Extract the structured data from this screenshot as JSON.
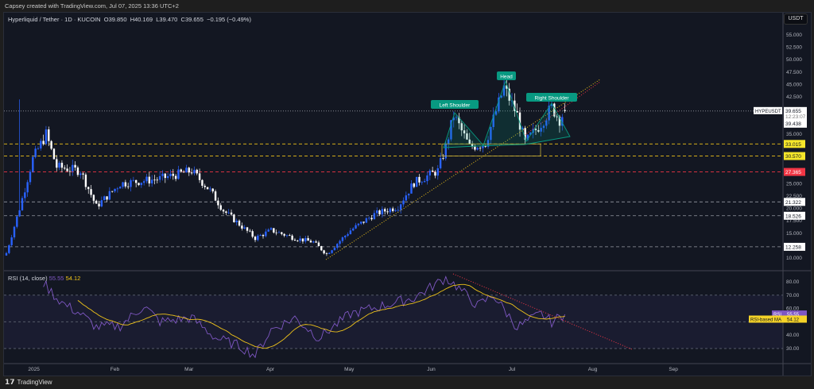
{
  "credit": "Capsey created with TradingView.com, Jul 07, 2025 13:36 UTC+2",
  "legend": {
    "symbol": "Hyperliquid / Tether · 1D · KUCOIN",
    "open": "O39.850",
    "high": "H40.169",
    "low": "L39.470",
    "close": "C39.655",
    "change": "−0.195 (−0.49%)"
  },
  "currency_button": "USDT",
  "rsi_legend": {
    "name": "RSI (14, close)",
    "rsi": "55.55",
    "ma": "54.12"
  },
  "footer": "TradingView",
  "colors": {
    "up": "#2962ff",
    "down": "#ffffff",
    "rsi": "#7e57c2",
    "ma": "#f0c419",
    "pattern": "#089981",
    "alert": "#f23645"
  },
  "chart_data": [
    {
      "type": "candlestick",
      "title": "Hyperliquid / Tether 1D",
      "price_ticks": [
        "55.000",
        "52.500",
        "50.000",
        "47.500",
        "45.000",
        "42.500",
        "35.000",
        "25.000",
        "22.500",
        "20.000",
        "17.500",
        "15.000",
        "10.000"
      ],
      "price_tick_values": [
        55,
        52.5,
        50,
        47.5,
        45,
        42.5,
        35,
        25,
        22.5,
        20,
        17.5,
        15,
        10
      ],
      "ylim": [
        8,
        58
      ],
      "close_keypoints": [
        [
          0,
          11
        ],
        [
          5,
          20
        ],
        [
          10,
          30
        ],
        [
          15,
          35
        ],
        [
          19,
          28.4
        ],
        [
          28,
          27.6
        ],
        [
          34,
          20.4
        ],
        [
          43,
          25
        ],
        [
          58,
          26
        ],
        [
          70,
          27.6
        ],
        [
          77,
          23.6
        ],
        [
          82,
          19.6
        ],
        [
          94,
          14
        ],
        [
          100,
          15.6
        ],
        [
          109,
          14
        ],
        [
          116,
          13.2
        ],
        [
          121,
          10.8
        ],
        [
          130,
          15.6
        ],
        [
          139,
          18.8
        ],
        [
          148,
          20.4
        ],
        [
          154,
          25.2
        ],
        [
          163,
          27.6
        ],
        [
          166,
          32.4
        ],
        [
          169,
          38.8
        ],
        [
          175,
          32.4
        ],
        [
          181,
          33.2
        ],
        [
          188,
          44.4
        ],
        [
          193,
          38.8
        ],
        [
          196,
          33.2
        ],
        [
          202,
          37.2
        ],
        [
          206,
          40.4
        ],
        [
          209,
          38
        ],
        [
          211,
          39.655
        ]
      ],
      "levels": [
        {
          "value": 39.655,
          "label": "39.655",
          "kind": "last"
        },
        {
          "value": 33.015,
          "label": "33.015",
          "kind": "yellow"
        },
        {
          "value": 30.57,
          "label": "30.570",
          "kind": "yellow"
        },
        {
          "value": 27.365,
          "label": "27.365",
          "kind": "red"
        },
        {
          "value": 21.322,
          "label": "21.322",
          "kind": "grey"
        },
        {
          "value": 18.526,
          "label": "18.526",
          "kind": "grey"
        },
        {
          "value": 12.258,
          "label": "12.258",
          "kind": "grey"
        }
      ],
      "last_tag": {
        "symbol": "HYPEUSDT",
        "price": "39.655",
        "countdown": "12:23:07",
        "prev": "39.438"
      },
      "annotations": [
        "Left Shoulder",
        "Head",
        "Right Shoulder"
      ]
    },
    {
      "type": "line",
      "title": "RSI (14, close)",
      "rsi_ticks": [
        "80.00",
        "70.00",
        "60.00",
        "40.00",
        "30.00"
      ],
      "rsi_tick_values": [
        80,
        70,
        60,
        40,
        30
      ],
      "rsi_keypoints": [
        [
          14,
          79
        ],
        [
          19,
          68
        ],
        [
          22,
          63
        ],
        [
          28,
          56
        ],
        [
          34,
          46
        ],
        [
          43,
          47
        ],
        [
          52,
          62
        ],
        [
          58,
          50
        ],
        [
          70,
          53
        ],
        [
          79,
          38
        ],
        [
          88,
          32
        ],
        [
          94,
          25
        ],
        [
          100,
          44
        ],
        [
          109,
          53
        ],
        [
          118,
          38
        ],
        [
          130,
          56
        ],
        [
          142,
          62
        ],
        [
          154,
          68
        ],
        [
          166,
          83
        ],
        [
          170,
          77
        ],
        [
          178,
          62
        ],
        [
          184,
          70
        ],
        [
          193,
          46
        ],
        [
          202,
          56
        ],
        [
          206,
          50
        ],
        [
          211,
          55.55
        ]
      ],
      "rsi_tag": "RSI",
      "rsi_value": "55.55",
      "ma_tag": "RSI-based MA",
      "ma_value": "54.12",
      "x_labels": [
        "2025",
        "Feb",
        "Mar",
        "Apr",
        "May",
        "Jun",
        "Jul",
        "Aug",
        "Sep"
      ]
    }
  ]
}
